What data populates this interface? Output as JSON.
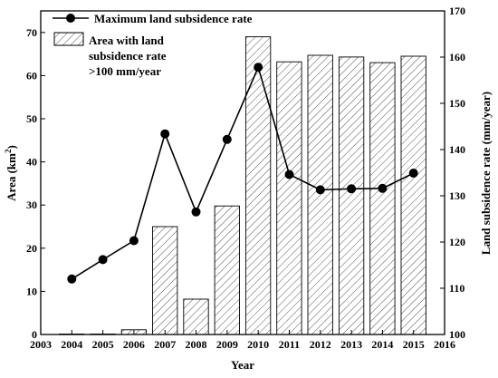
{
  "chart_data": {
    "type": "bar+line",
    "x_categories": [
      2004,
      2005,
      2006,
      2007,
      2008,
      2009,
      2010,
      2011,
      2012,
      2013,
      2014,
      2015
    ],
    "x_ticks": [
      "2003",
      "2004",
      "2005",
      "2006",
      "2007",
      "2008",
      "2009",
      "2010",
      "2011",
      "2012",
      "2013",
      "2014",
      "2015",
      "2016"
    ],
    "xlim": [
      2003,
      2016
    ],
    "xlabel": "Year",
    "left_axis": {
      "label_main": "Area (km",
      "label_sup": "2",
      "label_end": ")",
      "ylim": [
        0,
        75
      ],
      "ticks": [
        0,
        10,
        20,
        30,
        40,
        50,
        60,
        70
      ]
    },
    "right_axis": {
      "label": "Land subsidence rate (mm/year)",
      "ylim": [
        100,
        170
      ],
      "ticks": [
        100,
        110,
        120,
        130,
        140,
        150,
        160,
        170
      ]
    },
    "series": [
      {
        "kind": "bar",
        "axis": "left",
        "legend_lines": [
          "Area with land",
          "subsidence rate",
          ">100 mm/year"
        ],
        "pattern": "diagonal-hatch",
        "values": [
          0.1,
          0.1,
          1.1,
          25.0,
          8.2,
          29.8,
          69.0,
          63.2,
          64.7,
          64.3,
          63.0,
          64.5
        ]
      },
      {
        "kind": "line",
        "axis": "right",
        "legend_lines": [
          "Maximum land subsidence rate"
        ],
        "marker": "circle",
        "values": [
          112,
          116.2,
          120.3,
          143.4,
          126.5,
          142.2,
          157.8,
          134.6,
          131.3,
          131.5,
          131.6,
          134.9
        ]
      }
    ],
    "legend_position": "top-left",
    "grid": false
  }
}
